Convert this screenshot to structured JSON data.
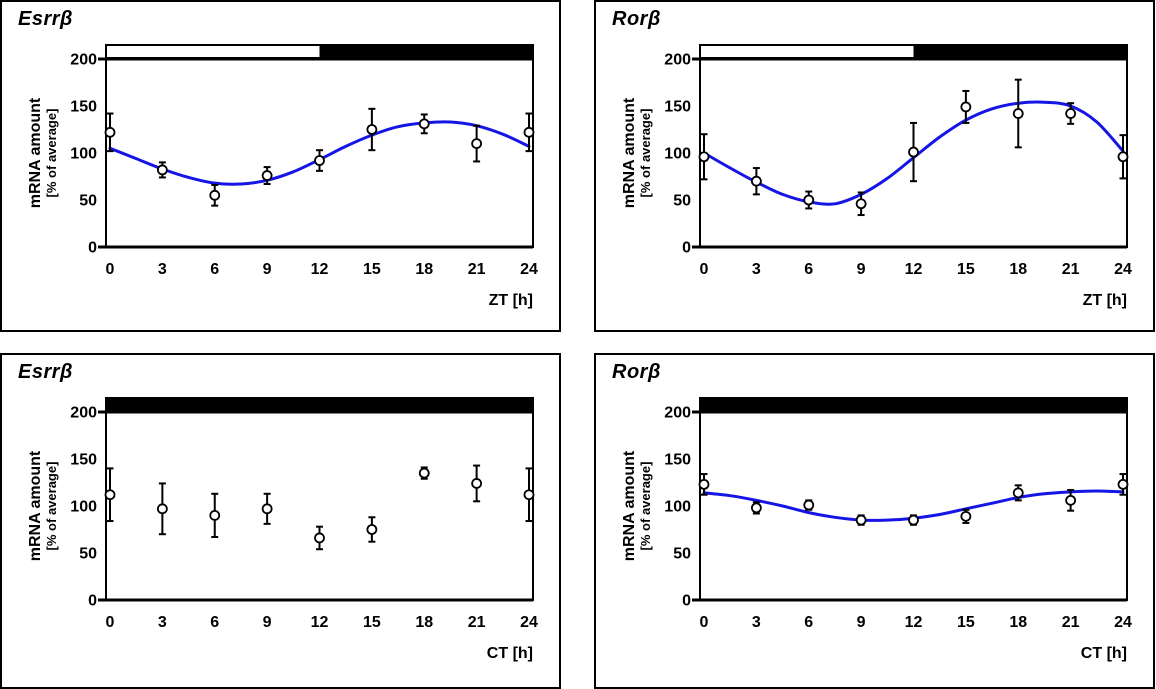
{
  "colors": {
    "curve": "#1515e6",
    "axis": "#000000",
    "marker_fill": "#ffffff",
    "bar_light": "#ffffff",
    "bar_dark": "#000000"
  },
  "chart_data": [
    {
      "type": "scatter",
      "title": "Esrrβ",
      "xlabel": "ZT [h]",
      "ylabel": "mRNA amount",
      "ylabel_sub": "[% of average]",
      "xlim": [
        0,
        24
      ],
      "ylim": [
        0,
        200
      ],
      "xticks": [
        0,
        3,
        6,
        9,
        12,
        15,
        18,
        21,
        24
      ],
      "yticks": [
        0,
        50,
        100,
        150,
        200
      ],
      "x": [
        0,
        3,
        6,
        9,
        12,
        15,
        18,
        21,
        24
      ],
      "values": [
        122,
        82,
        55,
        76,
        92,
        125,
        131,
        110,
        122
      ],
      "errors": [
        20,
        8,
        11,
        9,
        11,
        22,
        10,
        19,
        20
      ],
      "marker": "open-circle",
      "photoperiod_bar": [
        {
          "from": 0,
          "to": 12,
          "shade": "light"
        },
        {
          "from": 12,
          "to": 24,
          "shade": "dark"
        }
      ],
      "fit_curve": {
        "t": [
          0,
          1.5,
          3,
          4.5,
          6,
          7.5,
          9,
          10.5,
          12,
          13.5,
          15,
          16.5,
          18,
          19.5,
          21,
          22.5,
          24
        ],
        "v": [
          105,
          94,
          83,
          74,
          68,
          67,
          71,
          80,
          93,
          107,
          119,
          128,
          132,
          133,
          129,
          120,
          107
        ]
      }
    },
    {
      "type": "scatter",
      "title": "Rorβ",
      "xlabel": "ZT [h]",
      "ylabel": "mRNA amount",
      "ylabel_sub": "[% of average]",
      "xlim": [
        0,
        24
      ],
      "ylim": [
        0,
        200
      ],
      "xticks": [
        0,
        3,
        6,
        9,
        12,
        15,
        18,
        21,
        24
      ],
      "yticks": [
        0,
        50,
        100,
        150,
        200
      ],
      "x": [
        0,
        3,
        6,
        9,
        12,
        15,
        18,
        21,
        24
      ],
      "values": [
        96,
        70,
        50,
        46,
        101,
        149,
        142,
        142,
        96
      ],
      "errors": [
        24,
        14,
        9,
        12,
        31,
        17,
        36,
        11,
        23
      ],
      "marker": "open-circle",
      "photoperiod_bar": [
        {
          "from": 0,
          "to": 12,
          "shade": "light"
        },
        {
          "from": 12,
          "to": 24,
          "shade": "dark"
        }
      ],
      "fit_curve": {
        "t": [
          0,
          1.5,
          3,
          4.5,
          6,
          7.5,
          9,
          10.5,
          12,
          13.5,
          15,
          16.5,
          18,
          19.5,
          21,
          22.5,
          24
        ],
        "v": [
          100,
          84,
          69,
          56,
          48,
          46,
          56,
          73,
          95,
          117,
          135,
          147,
          153,
          154,
          150,
          133,
          102
        ]
      }
    },
    {
      "type": "scatter",
      "title": "Esrrβ",
      "xlabel": "CT [h]",
      "ylabel": "mRNA amount",
      "ylabel_sub": "[% of average]",
      "xlim": [
        0,
        24
      ],
      "ylim": [
        0,
        200
      ],
      "xticks": [
        0,
        3,
        6,
        9,
        12,
        15,
        18,
        21,
        24
      ],
      "yticks": [
        0,
        50,
        100,
        150,
        200
      ],
      "x": [
        0,
        3,
        6,
        9,
        12,
        15,
        18,
        21,
        24
      ],
      "values": [
        112,
        97,
        90,
        97,
        66,
        75,
        135,
        124,
        112
      ],
      "errors": [
        28,
        27,
        23,
        16,
        12,
        13,
        6,
        19,
        28
      ],
      "marker": "open-circle",
      "photoperiod_bar": [
        {
          "from": 0,
          "to": 24,
          "shade": "dark"
        }
      ],
      "fit_curve": null
    },
    {
      "type": "scatter",
      "title": "Rorβ",
      "xlabel": "CT [h]",
      "ylabel": "mRNA amount",
      "ylabel_sub": "[% of average]",
      "xlim": [
        0,
        24
      ],
      "ylim": [
        0,
        200
      ],
      "xticks": [
        0,
        3,
        6,
        9,
        12,
        15,
        18,
        21,
        24
      ],
      "yticks": [
        0,
        50,
        100,
        150,
        200
      ],
      "x": [
        0,
        3,
        6,
        9,
        12,
        15,
        18,
        21,
        24
      ],
      "values": [
        123,
        98,
        101,
        85,
        85,
        89,
        114,
        106,
        123
      ],
      "errors": [
        11,
        6,
        5,
        5,
        5,
        7,
        8,
        11,
        11
      ],
      "marker": "open-circle",
      "photoperiod_bar": [
        {
          "from": 0,
          "to": 24,
          "shade": "dark"
        }
      ],
      "fit_curve": {
        "t": [
          0,
          1.5,
          3,
          4.5,
          6,
          7.5,
          9,
          10.5,
          12,
          13.5,
          15,
          16.5,
          18,
          19.5,
          21,
          22.5,
          24
        ],
        "v": [
          114,
          111,
          106,
          100,
          93,
          88,
          85,
          85,
          87,
          91,
          97,
          103,
          109,
          113,
          115,
          116,
          115
        ]
      }
    }
  ]
}
